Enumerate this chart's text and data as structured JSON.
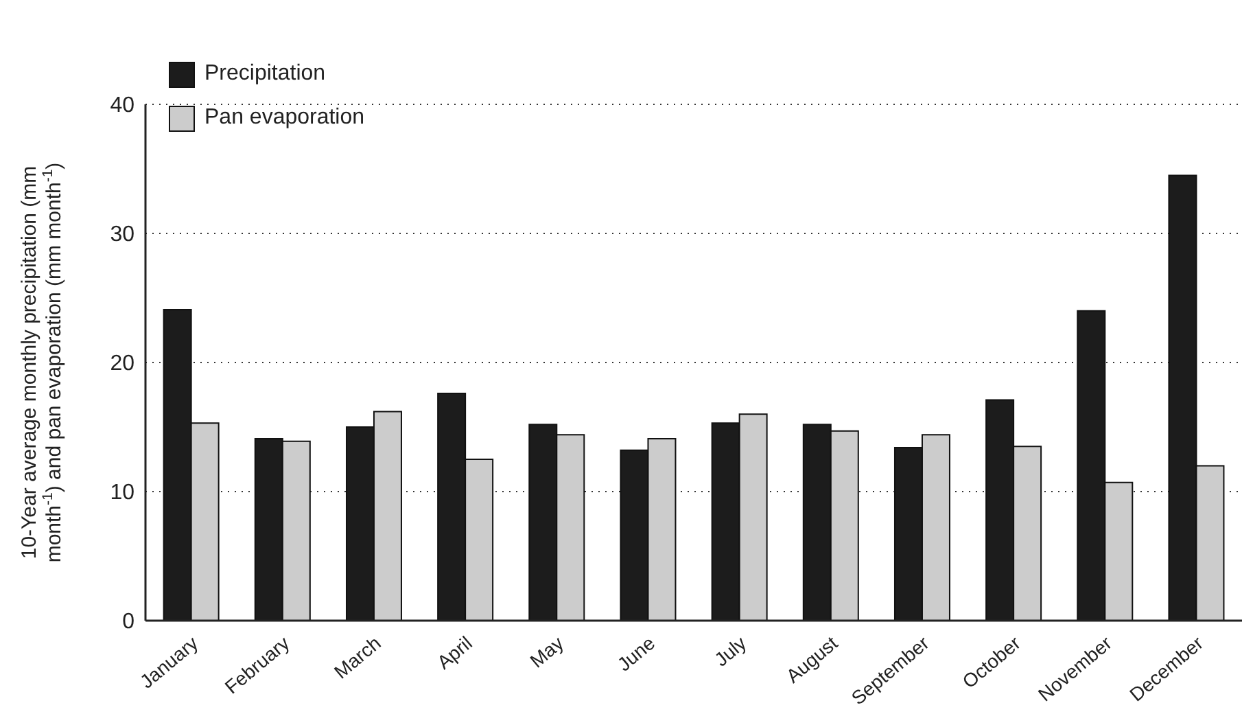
{
  "chart_data": {
    "type": "bar",
    "ylabel": "10-Year average monthly precipitation (mm month$^{-1}$) and pan evaporation (mm month$^{-1}$)",
    "categories": [
      "January",
      "February",
      "March",
      "April",
      "May",
      "June",
      "July",
      "August",
      "September",
      "October",
      "November",
      "December"
    ],
    "series": [
      {
        "name": "Precipitation",
        "color": "#1c1c1c",
        "values": [
          24.1,
          14.1,
          15.0,
          17.6,
          15.2,
          13.2,
          15.3,
          15.2,
          13.4,
          17.1,
          24.0,
          34.5
        ]
      },
      {
        "name": "Pan evaporation",
        "color": "#cccccc",
        "values": [
          15.3,
          13.9,
          16.2,
          12.5,
          14.4,
          14.1,
          16.0,
          14.7,
          14.4,
          13.5,
          10.7,
          12.0
        ]
      }
    ],
    "ylim": [
      0,
      40
    ],
    "yticks": [
      0,
      10,
      20,
      30,
      40
    ],
    "grid": "y",
    "legend": "top left"
  }
}
